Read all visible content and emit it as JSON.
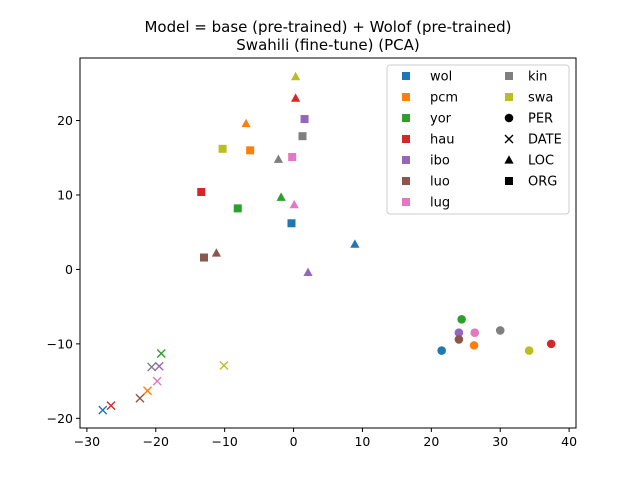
{
  "chart_data": {
    "type": "scatter",
    "title": [
      "Model = base (pre-trained) + Wolof (pre-trained)",
      "Swahili (fine-tune) (PCA)"
    ],
    "xlabel": "",
    "ylabel": "",
    "xlim": [
      -31,
      41
    ],
    "ylim": [
      -21.3,
      28.4
    ],
    "xticks": [
      -30,
      -20,
      -10,
      0,
      10,
      20,
      30,
      40
    ],
    "yticks": [
      -20,
      -10,
      0,
      10,
      20
    ],
    "grid": false,
    "legend": {
      "placement": "upper-right",
      "languages": [
        {
          "name": "wol",
          "color": "#1f77b4"
        },
        {
          "name": "pcm",
          "color": "#ff7f0e"
        },
        {
          "name": "yor",
          "color": "#2ca02c"
        },
        {
          "name": "hau",
          "color": "#d62728"
        },
        {
          "name": "ibo",
          "color": "#9467bd"
        },
        {
          "name": "luo",
          "color": "#8c564b"
        },
        {
          "name": "lug",
          "color": "#e377c2"
        },
        {
          "name": "kin",
          "color": "#7f7f7f"
        },
        {
          "name": "swa",
          "color": "#bcbd22"
        }
      ],
      "entities": [
        {
          "name": "PER",
          "marker": "circle"
        },
        {
          "name": "DATE",
          "marker": "x"
        },
        {
          "name": "LOC",
          "marker": "triangle"
        },
        {
          "name": "ORG",
          "marker": "square"
        }
      ]
    },
    "points": [
      {
        "lang": "wol",
        "entity": "PER",
        "x": 21.5,
        "y": -10.9
      },
      {
        "lang": "pcm",
        "entity": "PER",
        "x": 26.2,
        "y": -10.2
      },
      {
        "lang": "yor",
        "entity": "PER",
        "x": 24.4,
        "y": -6.7
      },
      {
        "lang": "hau",
        "entity": "PER",
        "x": 37.4,
        "y": -10.0
      },
      {
        "lang": "ibo",
        "entity": "PER",
        "x": 24.0,
        "y": -8.5
      },
      {
        "lang": "luo",
        "entity": "PER",
        "x": 24.0,
        "y": -9.4
      },
      {
        "lang": "lug",
        "entity": "PER",
        "x": 26.3,
        "y": -8.5
      },
      {
        "lang": "kin",
        "entity": "PER",
        "x": 30.0,
        "y": -8.2
      },
      {
        "lang": "swa",
        "entity": "PER",
        "x": 34.2,
        "y": -10.9
      },
      {
        "lang": "wol",
        "entity": "DATE",
        "x": -27.7,
        "y": -18.9
      },
      {
        "lang": "pcm",
        "entity": "DATE",
        "x": -21.2,
        "y": -16.3
      },
      {
        "lang": "yor",
        "entity": "DATE",
        "x": -19.2,
        "y": -11.3
      },
      {
        "lang": "hau",
        "entity": "DATE",
        "x": -26.5,
        "y": -18.3
      },
      {
        "lang": "ibo",
        "entity": "DATE",
        "x": -19.5,
        "y": -13.0
      },
      {
        "lang": "luo",
        "entity": "DATE",
        "x": -22.3,
        "y": -17.3
      },
      {
        "lang": "lug",
        "entity": "DATE",
        "x": -19.8,
        "y": -15.0
      },
      {
        "lang": "kin",
        "entity": "DATE",
        "x": -20.6,
        "y": -13.1
      },
      {
        "lang": "swa",
        "entity": "DATE",
        "x": -10.1,
        "y": -12.9
      },
      {
        "lang": "wol",
        "entity": "LOC",
        "x": 8.9,
        "y": 3.4
      },
      {
        "lang": "pcm",
        "entity": "LOC",
        "x": -6.9,
        "y": 19.6
      },
      {
        "lang": "yor",
        "entity": "LOC",
        "x": -1.8,
        "y": 9.7
      },
      {
        "lang": "hau",
        "entity": "LOC",
        "x": 0.3,
        "y": 23.0
      },
      {
        "lang": "ibo",
        "entity": "LOC",
        "x": 2.1,
        "y": -0.4
      },
      {
        "lang": "luo",
        "entity": "LOC",
        "x": -11.2,
        "y": 2.2
      },
      {
        "lang": "lug",
        "entity": "LOC",
        "x": 0.1,
        "y": 8.7
      },
      {
        "lang": "kin",
        "entity": "LOC",
        "x": -2.2,
        "y": 14.8
      },
      {
        "lang": "swa",
        "entity": "LOC",
        "x": 0.3,
        "y": 25.9
      },
      {
        "lang": "wol",
        "entity": "ORG",
        "x": -0.3,
        "y": 6.2
      },
      {
        "lang": "pcm",
        "entity": "ORG",
        "x": -6.3,
        "y": 16.0
      },
      {
        "lang": "yor",
        "entity": "ORG",
        "x": -8.1,
        "y": 8.2
      },
      {
        "lang": "hau",
        "entity": "ORG",
        "x": -13.4,
        "y": 10.4
      },
      {
        "lang": "ibo",
        "entity": "ORG",
        "x": 1.6,
        "y": 20.2
      },
      {
        "lang": "luo",
        "entity": "ORG",
        "x": -13.0,
        "y": 1.6
      },
      {
        "lang": "lug",
        "entity": "ORG",
        "x": -0.2,
        "y": 15.1
      },
      {
        "lang": "kin",
        "entity": "ORG",
        "x": 1.3,
        "y": 17.9
      },
      {
        "lang": "swa",
        "entity": "ORG",
        "x": -10.3,
        "y": 16.2
      }
    ]
  }
}
